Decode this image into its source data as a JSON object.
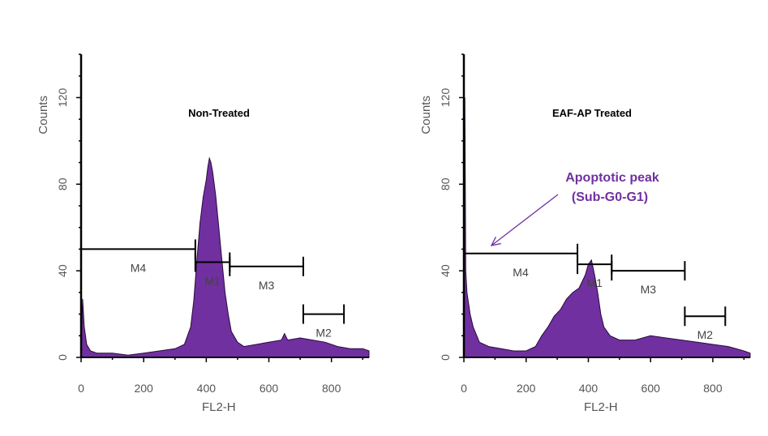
{
  "colors": {
    "fill": "#7030A0",
    "outline": "#2a0a3a",
    "axis": "#000000",
    "marker": "#000000",
    "annotation": "#7030A0"
  },
  "chart_data": [
    {
      "type": "area",
      "title": "Non-Treated",
      "xlabel": "FL2-H",
      "ylabel": "Counts",
      "xlim": [
        0,
        920
      ],
      "ylim": [
        0,
        140
      ],
      "xticks": [
        0,
        200,
        400,
        600,
        800
      ],
      "yticks": [
        0,
        40,
        80,
        120
      ],
      "grid": false,
      "series": [
        {
          "values": [
            [
              0,
              3
            ],
            [
              5,
              27
            ],
            [
              10,
              14
            ],
            [
              18,
              6
            ],
            [
              30,
              3
            ],
            [
              50,
              2
            ],
            [
              100,
              2
            ],
            [
              150,
              1
            ],
            [
              200,
              2
            ],
            [
              250,
              3
            ],
            [
              300,
              4
            ],
            [
              330,
              6
            ],
            [
              350,
              14
            ],
            [
              360,
              26
            ],
            [
              370,
              45
            ],
            [
              380,
              62
            ],
            [
              390,
              74
            ],
            [
              400,
              82
            ],
            [
              405,
              88
            ],
            [
              410,
              92
            ],
            [
              415,
              90
            ],
            [
              420,
              86
            ],
            [
              430,
              75
            ],
            [
              440,
              60
            ],
            [
              450,
              45
            ],
            [
              460,
              30
            ],
            [
              470,
              20
            ],
            [
              480,
              12
            ],
            [
              500,
              7
            ],
            [
              520,
              5
            ],
            [
              560,
              6
            ],
            [
              600,
              7
            ],
            [
              640,
              8
            ],
            [
              650,
              11
            ],
            [
              660,
              8
            ],
            [
              700,
              9
            ],
            [
              740,
              8
            ],
            [
              780,
              7
            ],
            [
              820,
              5
            ],
            [
              860,
              4
            ],
            [
              900,
              4
            ],
            [
              920,
              3
            ]
          ]
        }
      ],
      "markers": [
        {
          "label": "M4",
          "from": 0,
          "to": 365,
          "y": 50
        },
        {
          "label": "M1",
          "from": 365,
          "to": 475,
          "y": 44
        },
        {
          "label": "M3",
          "from": 475,
          "to": 710,
          "y": 42
        },
        {
          "label": "M2",
          "from": 710,
          "to": 840,
          "y": 20
        }
      ]
    },
    {
      "type": "area",
      "title": "EAF-AP Treated",
      "xlabel": "FL2-H",
      "ylabel": "Counts",
      "xlim": [
        0,
        920
      ],
      "ylim": [
        0,
        140
      ],
      "xticks": [
        0,
        200,
        400,
        600,
        800
      ],
      "yticks": [
        0,
        40,
        80,
        120
      ],
      "grid": false,
      "series": [
        {
          "values": [
            [
              0,
              10
            ],
            [
              3,
              120
            ],
            [
              6,
              40
            ],
            [
              10,
              30
            ],
            [
              20,
              20
            ],
            [
              30,
              14
            ],
            [
              50,
              7
            ],
            [
              80,
              5
            ],
            [
              120,
              4
            ],
            [
              160,
              3
            ],
            [
              200,
              3
            ],
            [
              230,
              5
            ],
            [
              250,
              10
            ],
            [
              270,
              14
            ],
            [
              290,
              19
            ],
            [
              310,
              22
            ],
            [
              330,
              27
            ],
            [
              350,
              30
            ],
            [
              370,
              32
            ],
            [
              380,
              35
            ],
            [
              390,
              38
            ],
            [
              400,
              43
            ],
            [
              410,
              45
            ],
            [
              420,
              38
            ],
            [
              430,
              30
            ],
            [
              440,
              20
            ],
            [
              450,
              14
            ],
            [
              470,
              10
            ],
            [
              500,
              8
            ],
            [
              550,
              8
            ],
            [
              600,
              10
            ],
            [
              650,
              9
            ],
            [
              700,
              8
            ],
            [
              750,
              7
            ],
            [
              800,
              6
            ],
            [
              850,
              5
            ],
            [
              900,
              3
            ],
            [
              920,
              2
            ]
          ]
        }
      ],
      "markers": [
        {
          "label": "M4",
          "from": 0,
          "to": 365,
          "y": 48
        },
        {
          "label": "M1",
          "from": 365,
          "to": 475,
          "y": 43
        },
        {
          "label": "M3",
          "from": 475,
          "to": 710,
          "y": 40
        },
        {
          "label": "M2",
          "from": 710,
          "to": 840,
          "y": 19
        }
      ],
      "annotation": {
        "line1": "Apoptotic peak",
        "line2": "(Sub-G0-G1)"
      }
    }
  ]
}
